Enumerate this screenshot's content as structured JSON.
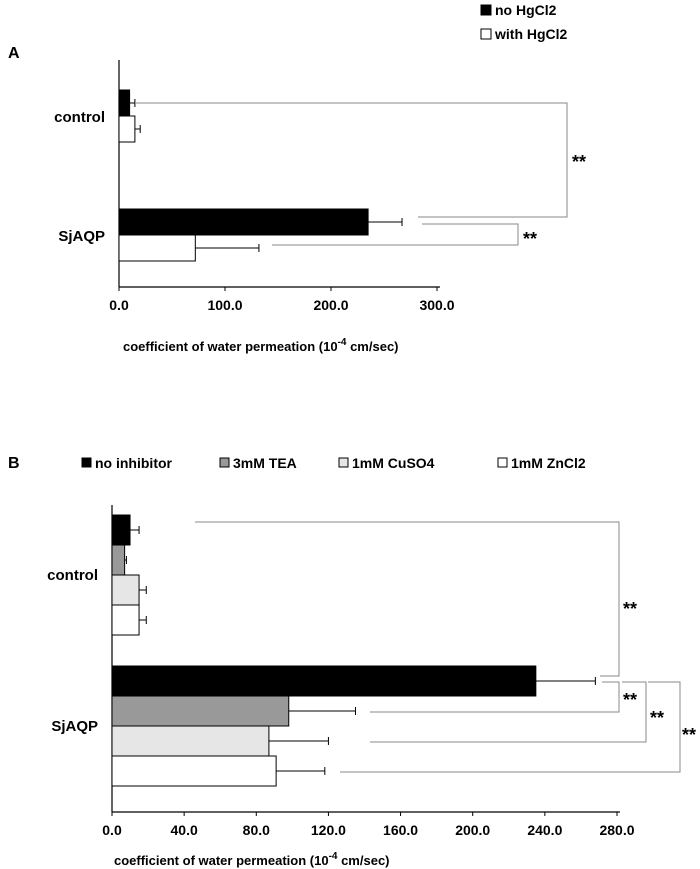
{
  "panels": {
    "A": {
      "letter": "A"
    },
    "B": {
      "letter": "B"
    }
  },
  "chart_data": [
    {
      "panel": "A",
      "type": "bar",
      "orientation": "horizontal",
      "categories": [
        "control",
        "SjAQP"
      ],
      "series": [
        {
          "name": "no HgCl2",
          "values": [
            10,
            235
          ],
          "errors": [
            5,
            32
          ],
          "color": "#000000"
        },
        {
          "name": "with HgCl2",
          "values": [
            15,
            72
          ],
          "errors": [
            5,
            60
          ],
          "color": "#ffffff"
        }
      ],
      "xlim": [
        0,
        300
      ],
      "xticks": [
        "0.0",
        "100.0",
        "200.0",
        "300.0"
      ],
      "xlabel": "coefficient of water permeation (10",
      "xlabel_sup": "-4",
      "xlabel_tail": " cm/sec)",
      "significance": [
        "**",
        "**"
      ],
      "legend_placement": "top-right",
      "grid": false
    },
    {
      "panel": "B",
      "type": "bar",
      "orientation": "horizontal",
      "categories": [
        "control",
        "SjAQP"
      ],
      "series": [
        {
          "name": "no inhibitor",
          "values": [
            10,
            235
          ],
          "errors": [
            5,
            33
          ],
          "color": "#000000"
        },
        {
          "name": "3mM TEA",
          "values": [
            7,
            98
          ],
          "errors": [
            1,
            37
          ],
          "color": "#999999"
        },
        {
          "name": "1mM CuSO4",
          "values": [
            15,
            87
          ],
          "errors": [
            4,
            33
          ],
          "color": "#e6e6e6"
        },
        {
          "name": "1mM ZnCl2",
          "values": [
            15,
            91
          ],
          "errors": [
            4,
            27
          ],
          "color": "#ffffff"
        }
      ],
      "xlim": [
        0,
        280
      ],
      "xticks": [
        "0.0",
        "40.0",
        "80.0",
        "120.0",
        "160.0",
        "200.0",
        "240.0",
        "280.0"
      ],
      "xlabel": "coefficient of water permeation (10",
      "xlabel_sup": "-4",
      "xlabel_tail": " cm/sec)",
      "significance": [
        "**",
        "**",
        "**",
        "**"
      ],
      "legend_placement": "top",
      "grid": false
    }
  ]
}
